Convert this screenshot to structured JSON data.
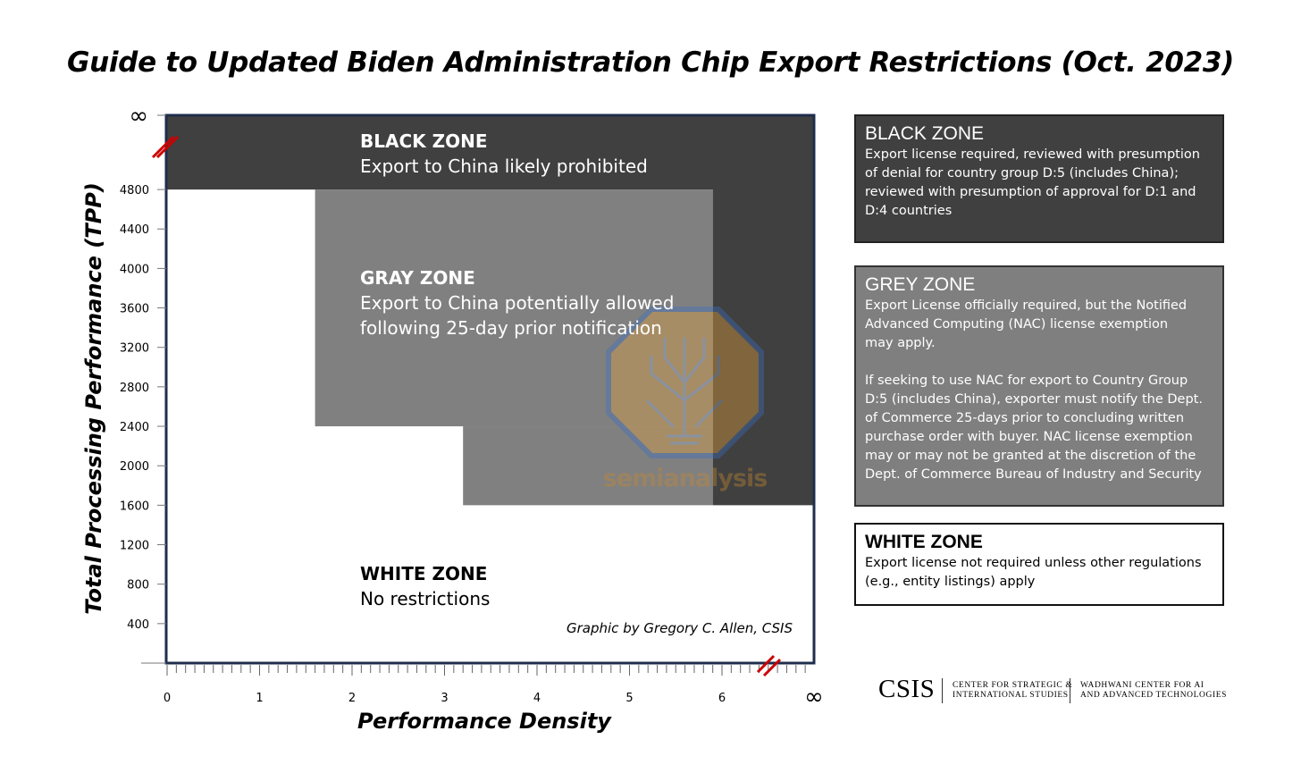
{
  "title": "Guide to Updated Biden Administration Chip Export Restrictions (Oct. 2023)",
  "chart_data": {
    "type": "area",
    "title": "Guide to Updated Biden Administration Chip Export Restrictions (Oct. 2023)",
    "xlabel": "Performance Density",
    "ylabel": "Total Processing Performance (TPP)",
    "x_ticks": [
      "0",
      "1",
      "2",
      "3",
      "4",
      "5",
      "6",
      "∞"
    ],
    "y_ticks": [
      "400",
      "800",
      "1200",
      "1600",
      "2000",
      "2400",
      "2800",
      "3200",
      "3600",
      "4000",
      "4400",
      "4800",
      "∞"
    ],
    "xlim": [
      0,
      7
    ],
    "ylim": [
      0,
      5560
    ],
    "zones": [
      {
        "name": "BLACK ZONE",
        "description": "Export to China likely prohibited",
        "regions": [
          {
            "x": [
              0,
              "∞"
            ],
            "y": [
              4800,
              "∞"
            ]
          },
          {
            "x": [
              5.9,
              "∞"
            ],
            "y": [
              1600,
              "∞"
            ]
          }
        ],
        "color": "#404040"
      },
      {
        "name": "GRAY ZONE",
        "description": "Export to China potentially allowed following 25-day prior notification",
        "regions": [
          {
            "x": [
              1.6,
              5.9
            ],
            "y": [
              2400,
              4800
            ]
          },
          {
            "x": [
              3.2,
              5.9
            ],
            "y": [
              1600,
              2400
            ]
          }
        ],
        "color": "#808080"
      },
      {
        "name": "WHITE ZONE",
        "description": "No restrictions",
        "regions": [
          {
            "x": [
              0,
              "∞"
            ],
            "y": [
              0,
              1600
            ]
          }
        ],
        "color": "#ffffff"
      }
    ],
    "annotation": "Graphic by Gregory C. Allen, CSIS",
    "grid": false
  },
  "zones_text": {
    "black": {
      "head": "BLACK ZONE",
      "line1": "Export to China likely prohibited"
    },
    "gray": {
      "head": "GRAY ZONE",
      "line1": "Export to China potentially allowed",
      "line2": "following 25-day prior notification"
    },
    "white": {
      "head": "WHITE ZONE",
      "line1": "No restrictions"
    }
  },
  "panels": {
    "black": {
      "heading": "BLACK ZONE",
      "text": "Export license required, reviewed with presumption\nof denial for country group D:5 (includes China);\nreviewed with presumption of approval for D:1 and\nD:4 countries"
    },
    "grey": {
      "heading": "GREY ZONE",
      "text": "Export License officially required, but the Notified\nAdvanced Computing (NAC) license exemption\nmay apply.\n\nIf seeking to use NAC for export to Country Group\nD:5 (includes China), exporter must notify the Dept.\nof Commerce 25-days prior to concluding written\npurchase order with buyer. NAC license exemption\nmay or may not be granted at the discretion of the\nDept. of Commerce Bureau of Industry and Security"
    },
    "white": {
      "heading": "WHITE ZONE",
      "text": "Export license not required unless other regulations\n(e.g., entity listings) apply"
    }
  },
  "credit": "Graphic by Gregory C. Allen, CSIS",
  "logo": {
    "csis": "CSIS",
    "center_line1": "CENTER FOR STRATEGIC &",
    "center_line2": "INTERNATIONAL STUDIES",
    "wadhwani_line1": "WADHWANI CENTER FOR AI",
    "wadhwani_line2": "AND ADVANCED TECHNOLOGIES"
  },
  "watermark": {
    "text": "semianalysis"
  },
  "colors": {
    "black_zone": "#404040",
    "gray_zone": "#808080",
    "frame": "#1f2d4d",
    "break_mark": "#cc0000"
  }
}
